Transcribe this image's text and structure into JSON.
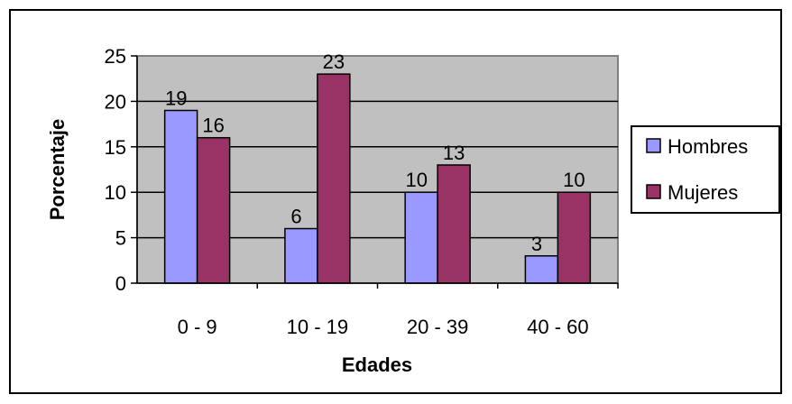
{
  "chart_data": {
    "type": "bar",
    "categories": [
      "0 - 9",
      "10 - 19",
      "20 - 39",
      "40 - 60"
    ],
    "series": [
      {
        "name": "Hombres",
        "values": [
          19,
          6,
          10,
          3
        ],
        "color": "#9999FF"
      },
      {
        "name": "Mujeres",
        "values": [
          16,
          23,
          13,
          10
        ],
        "color": "#993366"
      }
    ],
    "title": "",
    "xlabel": "Edades",
    "ylabel": "Porcentaje",
    "ylim": [
      0,
      25
    ],
    "yticks": [
      "0",
      "5",
      "10",
      "15",
      "20",
      "25"
    ],
    "grid": true,
    "legend": "right",
    "plot_background": "#C0C0C0",
    "data_labels": true
  }
}
